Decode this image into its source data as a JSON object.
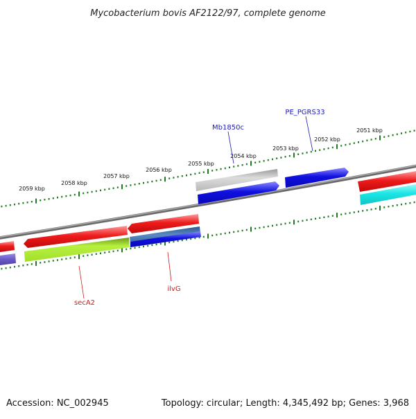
{
  "title": "Mycobacterium bovis AF2122/97, complete genome",
  "footer": {
    "accession": "Accession: NC_002945",
    "topology": "Topology: circular; Length: 4,345,492 bp; Genes: 3,968"
  },
  "ruler_labels": [
    "2059 kbp",
    "2058 kbp",
    "2057 kbp",
    "2056 kbp",
    "2055 kbp",
    "2054 kbp",
    "2053 kbp",
    "2052 kbp",
    "2051 kbp"
  ],
  "gene_labels": {
    "mb1850c": "Mb1850c",
    "pe_pgrs33": "PE_PGRS33",
    "seca2": "secA2",
    "ilvg": "ilvG"
  },
  "colors": {
    "backbone": "#7a7a7a",
    "tick": "#1f7a1f",
    "red_feature": "#ee1c1c",
    "blue_feature": "#1010e0",
    "grey_feature": "#b8b8b8",
    "cyan_feature": "#1ae6e6",
    "lime_feature": "#a8ec2e",
    "steel_feature": "#4a7ab0",
    "purple_feature": "#6a5ac8",
    "blue_label": "#1a1ab3",
    "red_label": "#cc1a1a"
  }
}
